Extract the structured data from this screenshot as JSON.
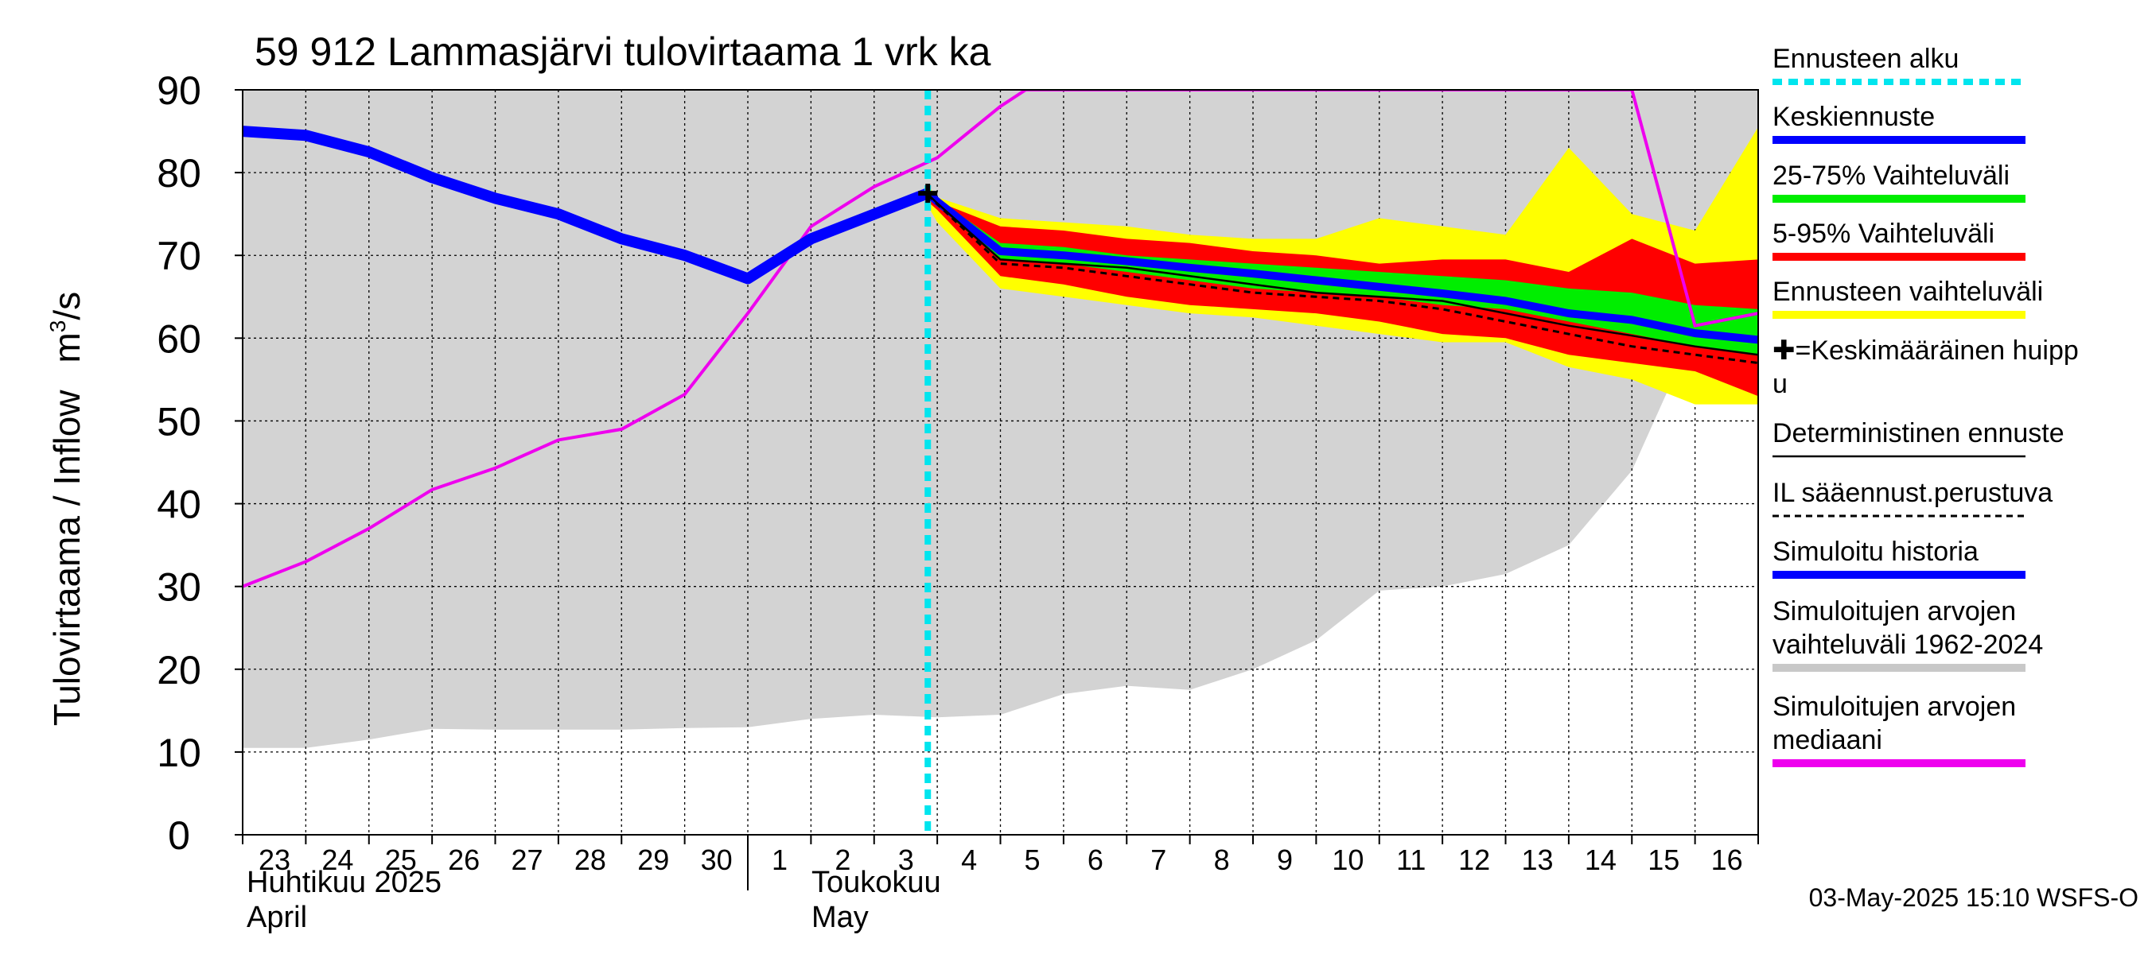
{
  "chart_data": {
    "type": "area",
    "title": "59 912 Lammasjärvi tulovirtaama 1 vrk ka",
    "ylabel": "Tulovirtaama / Inflow",
    "yunit_base": "m",
    "yunit_exp": "3",
    "yunit_rest": "/s",
    "ylim": [
      0,
      90
    ],
    "yticks": [
      0,
      10,
      20,
      30,
      40,
      50,
      60,
      70,
      80,
      90
    ],
    "x_day_ticks": [
      "23",
      "24",
      "25",
      "26",
      "27",
      "28",
      "29",
      "30",
      "1",
      "2",
      "3",
      "4",
      "5",
      "6",
      "7",
      "8",
      "9",
      "10",
      "11",
      "12",
      "13",
      "14",
      "15",
      "16"
    ],
    "month_labels": {
      "april_fi": "Huhtikuu  2025",
      "april_en": "April",
      "may_fi": "Toukokuu",
      "may_en": "May"
    },
    "forecast_start_day": 10.85,
    "footer": "03-May-2025 15:10 WSFS-O",
    "legend": [
      {
        "label": "Ennusteen alku",
        "color": "#00e5ee",
        "style": "dotted"
      },
      {
        "label": "Keskiennuste",
        "color": "#0000ff",
        "style": "solid"
      },
      {
        "label": "25-75% Vaihteluväli",
        "color": "#00ee00",
        "style": "solid"
      },
      {
        "label": "5-95% Vaihteluväli",
        "color": "#ff0000",
        "style": "solid"
      },
      {
        "label": "Ennusteen vaihteluväli",
        "color": "#ffff00",
        "style": "solid"
      },
      {
        "label": "✚=Keskimääräinen huipp",
        "label2": "u",
        "color": "#000000",
        "style": "marker"
      },
      {
        "label": "Deterministinen ennuste",
        "color": "#000000",
        "style": "thin"
      },
      {
        "label": "IL sääennust.perustuva",
        "color": "#000000",
        "style": "dashed"
      },
      {
        "label": "Simuloitu historia",
        "color": "#0000ff",
        "style": "solid"
      },
      {
        "label": "Simuloitujen arvojen",
        "label2": "vaihteluväli 1962-2024",
        "color": "#c8c8c8",
        "style": "solid"
      },
      {
        "label": "Simuloitujen arvojen",
        "label2": "mediaani",
        "color": "#ee00ee",
        "style": "solid"
      }
    ],
    "series": {
      "sim_range_x": [
        0,
        1,
        2,
        3,
        4,
        5,
        6,
        7,
        8,
        9,
        10,
        11,
        12,
        13,
        14,
        15,
        16,
        17,
        18,
        19,
        20,
        21,
        22,
        23,
        24
      ],
      "sim_range_low": [
        10.5,
        10.5,
        11.5,
        12.8,
        12.7,
        12.7,
        12.7,
        12.9,
        13.0,
        14.0,
        14.5,
        14.2,
        14.5,
        17.0,
        18.0,
        17.5,
        20.0,
        23.5,
        29.5,
        30.0,
        31.5,
        35.0,
        44.0,
        61.0,
        63.0
      ],
      "sim_range_high": [
        90,
        90,
        90,
        90,
        90,
        90,
        90,
        90,
        90,
        90,
        90,
        90,
        90,
        90,
        90,
        90,
        90,
        90,
        90,
        90,
        90,
        90,
        90,
        90,
        90
      ],
      "median_x": [
        0,
        1,
        2,
        3,
        4,
        5,
        6,
        7,
        8,
        9,
        10,
        11,
        12,
        12.4,
        13,
        14,
        15,
        16,
        17,
        18,
        19,
        20,
        21,
        22,
        23,
        24
      ],
      "median_y": [
        30,
        33,
        37,
        41.7,
        44.3,
        47.7,
        49,
        53.2,
        63,
        73.5,
        78.3,
        81.8,
        88,
        90,
        90,
        90,
        90,
        90,
        90,
        90,
        90,
        90,
        90,
        90,
        61.5,
        63
      ],
      "history_x": [
        0,
        1,
        2,
        3,
        4,
        5,
        6,
        7,
        8,
        9,
        10.85
      ],
      "history_y": [
        85.0,
        84.5,
        82.5,
        79.4,
        76.9,
        75.0,
        72.0,
        70.0,
        67.2,
        72.0,
        77.5
      ],
      "fc_x": [
        10.85,
        11,
        12,
        13,
        14,
        15,
        16,
        17,
        18,
        19,
        20,
        21,
        22,
        23,
        24
      ],
      "fc_yellow_low": [
        76.0,
        74.0,
        66.0,
        65.0,
        64.0,
        63.0,
        62.5,
        61.5,
        60.5,
        59.5,
        59.5,
        56.5,
        55.0,
        52.0,
        52.0
      ],
      "fc_yellow_high": [
        78.5,
        77.0,
        74.5,
        74.0,
        73.5,
        72.5,
        72.0,
        72.0,
        74.5,
        73.5,
        72.5,
        83.0,
        75.0,
        73.0,
        85.5
      ],
      "fc_red_low": [
        76.5,
        75.5,
        67.5,
        66.5,
        65.0,
        64.0,
        63.5,
        63.0,
        62.0,
        60.5,
        60.0,
        58.0,
        57.0,
        56.0,
        53.0
      ],
      "fc_red_high": [
        78.0,
        76.5,
        73.5,
        73.0,
        72.0,
        71.5,
        70.5,
        70.0,
        69.0,
        69.5,
        69.5,
        68.0,
        72.0,
        69.0,
        69.5
      ],
      "fc_green_low": [
        77.0,
        76.0,
        69.5,
        69.0,
        68.0,
        67.0,
        66.0,
        65.5,
        65.0,
        64.0,
        63.5,
        62.0,
        60.5,
        59.0,
        58.0
      ],
      "fc_green_high": [
        77.8,
        76.8,
        71.5,
        71.0,
        70.0,
        69.5,
        69.0,
        68.5,
        68.0,
        67.5,
        67.0,
        66.0,
        65.5,
        64.0,
        63.5
      ],
      "fc_median_y": [
        77.5,
        76.5,
        70.5,
        70.0,
        69.3,
        68.5,
        67.8,
        67.0,
        66.2,
        65.4,
        64.5,
        63.0,
        62.2,
        60.6,
        59.8
      ],
      "fc_det_y": [
        77.4,
        76.3,
        69.5,
        69.0,
        68.5,
        67.5,
        66.5,
        65.5,
        65.0,
        64.5,
        63.0,
        61.5,
        60.3,
        59.0,
        58.0
      ],
      "fc_il_y": [
        77.3,
        76.2,
        69.0,
        68.5,
        67.5,
        66.5,
        65.5,
        65.0,
        64.5,
        63.5,
        62.0,
        60.5,
        59.0,
        58.0,
        57.0
      ],
      "peak_marker_x": 10.85,
      "peak_marker_y": 77.5
    }
  }
}
